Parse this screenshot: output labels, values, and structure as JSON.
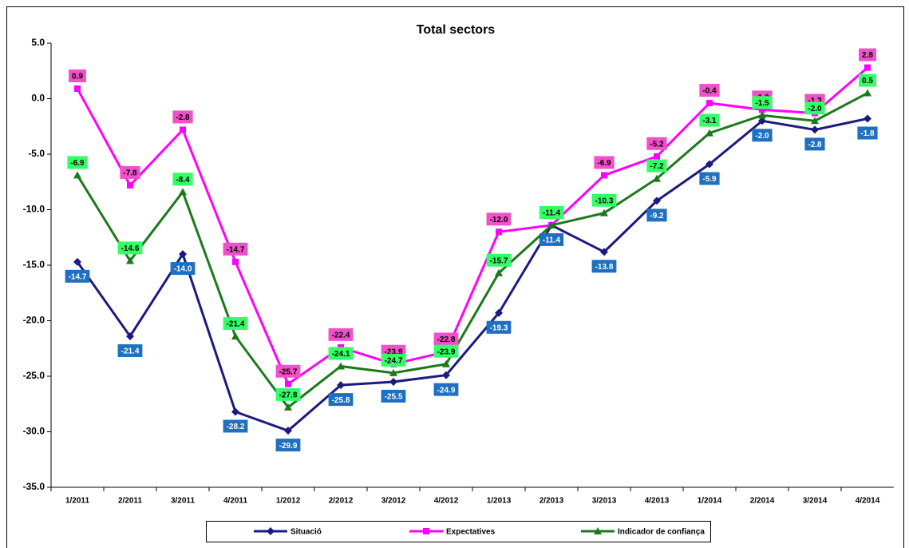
{
  "chart_data": {
    "type": "line",
    "title": "Total sectors",
    "categories": [
      "1/2011",
      "2/2011",
      "3/2011",
      "4/2011",
      "1/2012",
      "2/2012",
      "3/2012",
      "4/2012",
      "1/2013",
      "2/2013",
      "3/2013",
      "4/2013",
      "1/2014",
      "2/2014",
      "3/2014",
      "4/2014"
    ],
    "ylim": [
      -35,
      5
    ],
    "yticks": [
      {
        "value": 5,
        "label": "5.0"
      },
      {
        "value": 0,
        "label": "0.0"
      },
      {
        "value": -5,
        "label": "-5.0"
      },
      {
        "value": -10,
        "label": "-10.0"
      },
      {
        "value": -15,
        "label": "-15.0"
      },
      {
        "value": -20,
        "label": "-20.0"
      },
      {
        "value": -25,
        "label": "-25.0"
      },
      {
        "value": -30,
        "label": "-30.0"
      },
      {
        "value": -35,
        "label": "-35.0"
      }
    ],
    "grid": false,
    "series": [
      {
        "name": "Situació",
        "color": "#1a1a80",
        "marker": "diamond",
        "label_color": "#1f70c0",
        "label_position": "below",
        "values": [
          -14.7,
          -21.4,
          -14.0,
          -28.2,
          -29.9,
          -25.8,
          -25.5,
          -24.9,
          -19.3,
          -11.4,
          -13.8,
          -9.2,
          -5.9,
          -2.0,
          -2.8,
          -1.8
        ],
        "value_labels": [
          "-14.7",
          "-21.4",
          "-14.0",
          "-28.2",
          "-29.9",
          "-25.8",
          "-25.5",
          "-24.9",
          "-19.3",
          "-11.4",
          "-13.8",
          "-9.2",
          "-5.9",
          "-2.0",
          "-2.8",
          "-1.8"
        ]
      },
      {
        "name": "Expectatives",
        "color": "#ff00ff",
        "marker": "square",
        "label_color": "#f050c8",
        "label_position": "above",
        "values": [
          0.9,
          -7.8,
          -2.8,
          -14.7,
          -25.7,
          -22.4,
          -23.9,
          -22.8,
          -12.0,
          -11.4,
          -6.9,
          -5.2,
          -0.4,
          -1.0,
          -1.3,
          2.8
        ],
        "value_labels": [
          "0.9",
          "-7.8",
          "-2.8",
          "-14.7",
          "-25.7",
          "-22.4",
          "-23.9",
          "-22.8",
          "-12.0",
          "-11.4",
          "-6.9",
          "-5.2",
          "-0.4",
          "-1.0",
          "-1.3",
          "2.8"
        ]
      },
      {
        "name": "Indicador de confiança",
        "color": "#1a7a1a",
        "marker": "triangle",
        "label_color": "#33ff66",
        "label_position": "above",
        "values": [
          -6.9,
          -14.6,
          -8.4,
          -21.4,
          -27.8,
          -24.1,
          -24.7,
          -23.9,
          -15.7,
          -11.4,
          -10.3,
          -7.2,
          -3.1,
          -1.5,
          -2.0,
          0.5
        ],
        "value_labels": [
          "-6.9",
          "-14.6",
          "-8.4",
          "-21.4",
          "-27.8",
          "-24.1",
          "-24.7",
          "-23.9",
          "-15.7",
          "-11.4",
          "-10.3",
          "-7.2",
          "-3.1",
          "-1.5",
          "-2.0",
          "0.5"
        ]
      }
    ]
  }
}
